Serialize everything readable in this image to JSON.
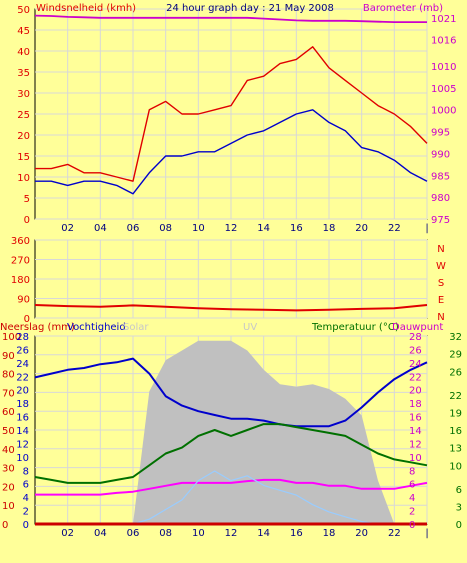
{
  "chart_data": [
    {
      "type": "line",
      "title": "24 hour graph day : 21 May 2008",
      "ylabel": "Windsnelheid (kmh)",
      "ylabel_right": "Barometer (mb)",
      "x_ticks": [
        "02",
        "04",
        "06",
        "08",
        "10",
        "12",
        "14",
        "16",
        "18",
        "20",
        "22",
        "|"
      ],
      "ylim": [
        0,
        50
      ],
      "ylim_right": [
        975,
        1023
      ],
      "y_ticks": [
        0,
        5,
        10,
        15,
        20,
        25,
        30,
        35,
        40,
        45,
        50
      ],
      "y_ticks_right": [
        975,
        980,
        985,
        990,
        995,
        1000,
        1005,
        1010,
        1016,
        1021
      ],
      "grid": true,
      "x": [
        0,
        1,
        2,
        3,
        4,
        5,
        6,
        7,
        8,
        9,
        10,
        11,
        12,
        13,
        14,
        15,
        16,
        17,
        18,
        19,
        20,
        21,
        22,
        23,
        24
      ],
      "series": [
        {
          "name": "Windsnelheid (kmh)",
          "role": "gust",
          "color": "#e00000",
          "values": [
            12,
            12,
            13,
            11,
            11,
            10,
            9,
            26,
            28,
            25,
            25,
            26,
            27,
            33,
            34,
            37,
            38,
            41,
            36,
            33,
            30,
            27,
            25,
            22,
            18
          ]
        },
        {
          "name": "Windsnelheid (kmh)",
          "role": "average",
          "color": "#0000cc",
          "values": [
            9,
            9,
            8,
            9,
            9,
            8,
            6,
            11,
            15,
            15,
            16,
            16,
            18,
            20,
            21,
            23,
            25,
            26,
            23,
            21,
            17,
            16,
            14,
            11,
            9
          ]
        },
        {
          "name": "Barometer (mb)",
          "axis": "right",
          "color": "#cc00cc",
          "values": [
            1021.5,
            1021.4,
            1021.2,
            1021.1,
            1021.0,
            1021.0,
            1021.0,
            1021.0,
            1021.0,
            1021.0,
            1021.0,
            1021.0,
            1021.0,
            1021.0,
            1020.8,
            1020.6,
            1020.4,
            1020.3,
            1020.3,
            1020.3,
            1020.2,
            1020.1,
            1020.0,
            1020.0,
            1020.0
          ]
        }
      ]
    },
    {
      "type": "line",
      "ylabel_right": "N W S E N",
      "x_ticks": [
        "02",
        "04",
        "06",
        "08",
        "10",
        "12",
        "14",
        "16",
        "18",
        "20",
        "22",
        "|"
      ],
      "ylim": [
        0,
        360
      ],
      "y_ticks": [
        0,
        90,
        180,
        270,
        360
      ],
      "y_ticks_right": [
        "N",
        "E",
        "S",
        "W",
        "N"
      ],
      "grid": true,
      "x": [
        0,
        2,
        4,
        6,
        8,
        10,
        12,
        14,
        16,
        18,
        20,
        22,
        24
      ],
      "series": [
        {
          "name": "Wind direction",
          "color": "#e00000",
          "values": [
            60,
            55,
            52,
            58,
            52,
            45,
            40,
            38,
            35,
            38,
            42,
            45,
            60
          ]
        }
      ]
    },
    {
      "type": "line",
      "labels_left": [
        "Neerslag (mm)",
        "Vochtigheid",
        "Solar",
        "UV"
      ],
      "labels_right": [
        "Temperatuur (°C)",
        "Dauwpunt"
      ],
      "x_ticks": [
        "02",
        "04",
        "06",
        "08",
        "10",
        "12",
        "14",
        "16",
        "18",
        "20",
        "22",
        "|"
      ],
      "y_ticks_humidity": [
        0,
        10,
        20,
        30,
        40,
        50,
        60,
        70,
        80,
        90,
        100
      ],
      "y_ticks_rain": [
        0,
        2,
        4,
        6,
        8,
        10,
        12,
        14,
        16,
        18,
        20,
        22,
        24,
        26,
        28
      ],
      "y_ticks_solar": [
        0,
        6,
        12,
        18,
        24,
        30,
        36,
        42,
        48,
        54,
        60,
        66,
        72,
        78
      ],
      "y_ticks_temp_right": [
        0,
        3,
        6,
        10,
        13,
        16,
        19,
        22,
        26,
        29,
        32
      ],
      "y_ticks_temp_inner": [
        0,
        2,
        4,
        6,
        8,
        10,
        12,
        14,
        16,
        18,
        20,
        22,
        24,
        26,
        28
      ],
      "ylim_temp": [
        0,
        32
      ],
      "ylim_humidity": [
        0,
        100
      ],
      "grid": true,
      "x": [
        0,
        1,
        2,
        3,
        4,
        5,
        6,
        7,
        8,
        9,
        10,
        11,
        12,
        13,
        14,
        15,
        16,
        17,
        18,
        19,
        20,
        21,
        22,
        23,
        24
      ],
      "series": [
        {
          "name": "Vochtigheid",
          "axis": "humidity",
          "color": "#0000cc",
          "values": [
            78,
            80,
            82,
            83,
            85,
            86,
            88,
            80,
            68,
            63,
            60,
            58,
            56,
            56,
            55,
            53,
            52,
            52,
            52,
            55,
            62,
            70,
            77,
            82,
            86
          ]
        },
        {
          "name": "Temperatuur",
          "axis": "temp",
          "color": "#007000",
          "values": [
            8,
            7.5,
            7,
            7,
            7,
            7.5,
            8,
            10,
            12,
            13,
            15,
            16,
            15,
            16,
            17,
            17,
            16.5,
            16,
            15.5,
            15,
            13.5,
            12,
            11,
            10.5,
            10
          ]
        },
        {
          "name": "Dauwpunt",
          "axis": "temp",
          "color": "#ff00ff",
          "values": [
            5,
            5,
            5,
            5,
            5,
            5.3,
            5.5,
            6,
            6.5,
            7,
            7,
            7,
            7,
            7.3,
            7.5,
            7.5,
            7,
            7,
            6.5,
            6.5,
            6,
            6,
            6,
            6.5,
            7
          ]
        },
        {
          "name": "Solar",
          "axis": "solar",
          "color": "#c0c0c0",
          "fill": true,
          "values": [
            0,
            0,
            0,
            0,
            0,
            0,
            0,
            55,
            68,
            72,
            76,
            76,
            76,
            72,
            64,
            58,
            57,
            58,
            56,
            52,
            45,
            18,
            0,
            0,
            0
          ]
        },
        {
          "name": "UV",
          "axis": "solar",
          "color": "#99ccff",
          "values": [
            0,
            0,
            0,
            0,
            0,
            0,
            0,
            2,
            6,
            10,
            18,
            22,
            18,
            20,
            16,
            14,
            12,
            8,
            5,
            3,
            1,
            0,
            0,
            0,
            0
          ]
        },
        {
          "name": "Neerslag (mm)",
          "axis": "rain",
          "color": "#cc0000",
          "values": [
            0,
            0,
            0,
            0,
            0,
            0,
            0,
            0,
            0,
            0,
            0,
            0,
            0,
            0,
            0,
            0,
            0,
            0,
            0,
            0,
            0,
            0,
            0,
            0,
            0
          ]
        }
      ]
    }
  ]
}
